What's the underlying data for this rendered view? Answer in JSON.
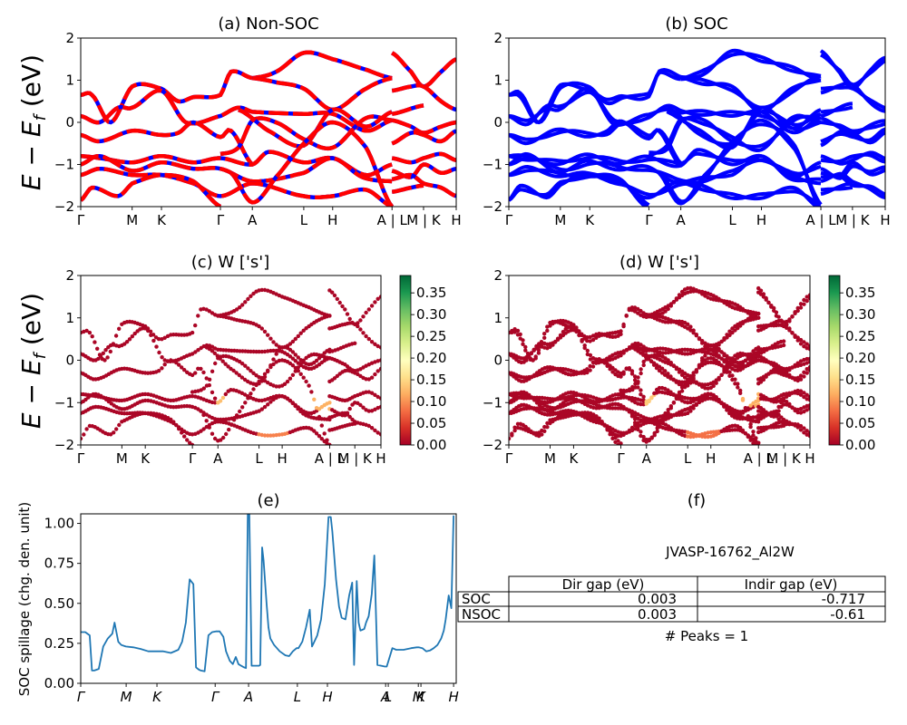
{
  "chart_data": [
    {
      "id": "a",
      "type": "line",
      "title": "(a) Non-SOC",
      "ylabel": "E − E_f (eV)",
      "ylim": [
        -2,
        2
      ],
      "yticks": [
        -2,
        -1,
        0,
        1,
        2
      ],
      "xticks": [
        {
          "label": "Γ",
          "x": 0.0
        },
        {
          "label": "M",
          "x": 0.137
        },
        {
          "label": "K",
          "x": 0.215
        },
        {
          "label": "Γ",
          "x": 0.372
        },
        {
          "label": "A",
          "x": 0.457
        },
        {
          "label": "L",
          "x": 0.594
        },
        {
          "label": "H",
          "x": 0.671
        },
        {
          "label": "A | L",
          "x": 0.829
        },
        {
          "label": "M | K",
          "x": 0.913
        },
        {
          "label": "H",
          "x": 1.0
        }
      ],
      "style": "dashed red-blue",
      "colors": {
        "primary": "#ff0000",
        "secondary": "#0000ff"
      },
      "bands": [
        {
          "x": [
            0,
            0.03,
            0.08,
            0.137,
            0.215,
            0.26,
            0.3,
            0.372,
            0.4,
            0.457
          ],
          "y": [
            0.65,
            0.65,
            0.0,
            0.85,
            0.8,
            0.5,
            0.6,
            0.65,
            1.2,
            1.05
          ]
        },
        {
          "x": [
            0,
            0.05,
            0.1,
            0.137,
            0.215,
            0.28,
            0.372,
            0.42,
            0.457,
            0.594,
            0.671,
            0.76,
            0.829
          ],
          "y": [
            0.15,
            0.0,
            0.35,
            0.35,
            0.75,
            0.0,
            0.15,
            0.35,
            0.25,
            0.2,
            0.2,
            -0.2,
            0.05
          ]
        },
        {
          "x": [
            0,
            0.05,
            0.137,
            0.215,
            0.26,
            0.3,
            0.372,
            0.4,
            0.457
          ],
          "y": [
            -0.3,
            -0.45,
            -0.2,
            -0.3,
            -0.25,
            0.0,
            -0.35,
            -0.2,
            -1.0
          ]
        },
        {
          "x": [
            0,
            0.05,
            0.137,
            0.215,
            0.3,
            0.372,
            0.457,
            0.5,
            0.594,
            0.671,
            0.76,
            0.829
          ],
          "y": [
            -0.8,
            -0.85,
            -0.95,
            -0.8,
            -0.95,
            -0.85,
            -1.0,
            -0.7,
            -0.95,
            -0.85,
            -1.25,
            -1.0
          ]
        },
        {
          "x": [
            0,
            0.05,
            0.137,
            0.215,
            0.3,
            0.372,
            0.457,
            0.594,
            0.671,
            0.75,
            0.829
          ],
          "y": [
            -1.0,
            -0.8,
            -1.15,
            -0.95,
            -1.1,
            -1.1,
            -1.4,
            -1.2,
            -0.85,
            -1.3,
            -1.4
          ]
        },
        {
          "x": [
            0,
            0.05,
            0.137,
            0.215,
            0.3,
            0.372,
            0.457,
            0.594,
            0.671,
            0.76,
            0.829
          ],
          "y": [
            -1.25,
            -1.1,
            -1.25,
            -1.25,
            -1.45,
            -1.75,
            -1.45,
            -1.75,
            -1.75,
            -1.6,
            -2.0
          ]
        },
        {
          "x": [
            0,
            0.03,
            0.1,
            0.137,
            0.215,
            0.3,
            0.372
          ],
          "y": [
            -1.85,
            -1.55,
            -1.75,
            -1.45,
            -1.25,
            -1.4,
            -2.0
          ]
        },
        {
          "x": [
            0.372,
            0.42,
            0.457,
            0.52,
            0.594,
            0.671,
            0.76,
            0.829
          ],
          "y": [
            -0.75,
            -0.6,
            0.05,
            0.0,
            -0.4,
            -0.6,
            0.1,
            0.05
          ]
        },
        {
          "x": [
            0.457,
            0.52,
            0.594,
            0.671,
            0.76,
            0.829
          ],
          "y": [
            1.05,
            1.2,
            1.65,
            1.5,
            1.25,
            1.05
          ]
        },
        {
          "x": [
            0.457,
            0.52,
            0.594,
            0.671,
            0.76,
            0.829
          ],
          "y": [
            1.05,
            0.95,
            0.8,
            0.3,
            0.8,
            1.05
          ]
        },
        {
          "x": [
            0.42,
            0.5,
            0.594,
            0.671,
            0.76,
            0.829
          ],
          "y": [
            0.3,
            -0.2,
            -0.55,
            0.3,
            -0.1,
            0.25
          ]
        },
        {
          "x": [
            0.4,
            0.457,
            0.52,
            0.594,
            0.671,
            0.76,
            0.829
          ],
          "y": [
            -1.2,
            -1.9,
            -1.3,
            -0.5,
            0.0,
            -0.6,
            -2.0
          ]
        },
        {
          "x": [
            0.829,
            0.88,
            0.913,
            0.96,
            1.0
          ],
          "y": [
            1.65,
            1.2,
            0.85,
            1.2,
            1.5
          ]
        },
        {
          "x": [
            0.829,
            0.88,
            0.913,
            0.96,
            1.0
          ],
          "y": [
            0.75,
            0.85,
            0.85,
            0.5,
            0.3
          ]
        },
        {
          "x": [
            0.829,
            0.913
          ],
          "y": [
            0.2,
            0.4
          ]
        },
        {
          "x": [
            0.829,
            0.88,
            0.913,
            0.96,
            1.0
          ],
          "y": [
            0.05,
            -0.1,
            -0.25,
            -0.1,
            0.0
          ]
        },
        {
          "x": [
            0.829,
            0.88,
            0.913,
            0.96,
            1.0
          ],
          "y": [
            -0.5,
            -0.25,
            -0.3,
            -0.45,
            -0.2
          ]
        },
        {
          "x": [
            0.829,
            0.88,
            0.913,
            0.96,
            1.0
          ],
          "y": [
            -0.85,
            -0.95,
            -0.85,
            -0.75,
            -0.9
          ]
        },
        {
          "x": [
            0.829,
            0.88,
            0.913,
            0.96,
            1.0
          ],
          "y": [
            -1.15,
            -1.3,
            -1.0,
            -1.2,
            -1.1
          ]
        },
        {
          "x": [
            0.829,
            0.88,
            0.913,
            0.96,
            1.0
          ],
          "y": [
            -1.35,
            -1.25,
            -1.45,
            -1.55,
            -1.75
          ]
        },
        {
          "x": [
            0.829,
            0.88,
            0.913
          ],
          "y": [
            -1.65,
            -1.55,
            -1.5
          ]
        }
      ]
    },
    {
      "id": "b",
      "type": "line",
      "title": "(b) SOC",
      "ylim": [
        -2,
        2
      ],
      "yticks": [
        -2,
        -1,
        0,
        1,
        2
      ],
      "xticks": [
        {
          "label": "Γ",
          "x": 0.0
        },
        {
          "label": "M",
          "x": 0.137
        },
        {
          "label": "K",
          "x": 0.215
        },
        {
          "label": "Γ",
          "x": 0.372
        },
        {
          "label": "A",
          "x": 0.457
        },
        {
          "label": "L",
          "x": 0.594
        },
        {
          "label": "H",
          "x": 0.671
        },
        {
          "label": "A | L",
          "x": 0.829
        },
        {
          "label": "M | K",
          "x": 0.913
        },
        {
          "label": "H",
          "x": 1.0
        }
      ],
      "colors": {
        "primary": "#0000ff"
      },
      "bands_ref": "a",
      "soc_split_eV": 0.1
    },
    {
      "id": "c",
      "type": "scatter",
      "title": "(c)  W ['s']",
      "ylabel": "E − E_f (eV)",
      "ylim": [
        -2,
        2
      ],
      "yticks": [
        -2,
        -1,
        0,
        1,
        2
      ],
      "xticks": [
        {
          "label": "Γ",
          "x": 0.0
        },
        {
          "label": "M",
          "x": 0.137
        },
        {
          "label": "K",
          "x": 0.215
        },
        {
          "label": "Γ",
          "x": 0.372
        },
        {
          "label": "A",
          "x": 0.457
        },
        {
          "label": "L",
          "x": 0.594
        },
        {
          "label": "H",
          "x": 0.671
        },
        {
          "label": "A | L",
          "x": 0.829
        },
        {
          "label": "M | K",
          "x": 0.913
        },
        {
          "label": "H",
          "x": 1.0
        }
      ],
      "colorbar": {
        "cmap": "RdYlGn",
        "min": 0.0,
        "max": 0.39,
        "ticks": [
          0.0,
          0.05,
          0.1,
          0.15,
          0.2,
          0.25,
          0.3,
          0.35
        ],
        "tick_labels": [
          "0.00",
          "0.05",
          "0.10",
          "0.15",
          "0.20",
          "0.25",
          "0.30",
          "0.35"
        ]
      },
      "bands_ref": "a",
      "highlights": [
        {
          "x": [
            0.457,
            0.52
          ],
          "y": -1.0,
          "weight": 0.13
        },
        {
          "x": [
            0.76,
            0.829
          ],
          "y": -1.0,
          "weight": 0.12
        },
        {
          "x": [
            0.594,
            0.7
          ],
          "y": -1.85,
          "weight": 0.09
        }
      ]
    },
    {
      "id": "d",
      "type": "scatter",
      "title": "(d) W ['s']",
      "ylim": [
        -2,
        2
      ],
      "yticks": [
        -2,
        -1,
        0,
        1,
        2
      ],
      "xticks": [
        {
          "label": "Γ",
          "x": 0.0
        },
        {
          "label": "M",
          "x": 0.137
        },
        {
          "label": "K",
          "x": 0.215
        },
        {
          "label": "Γ",
          "x": 0.372
        },
        {
          "label": "A",
          "x": 0.457
        },
        {
          "label": "L",
          "x": 0.594
        },
        {
          "label": "H",
          "x": 0.671
        },
        {
          "label": "A | L",
          "x": 0.829
        },
        {
          "label": "M | K",
          "x": 0.913
        },
        {
          "label": "H",
          "x": 1.0
        }
      ],
      "colorbar": {
        "cmap": "RdYlGn",
        "min": 0.0,
        "max": 0.39,
        "ticks": [
          0.0,
          0.05,
          0.1,
          0.15,
          0.2,
          0.25,
          0.3,
          0.35
        ],
        "tick_labels": [
          "0.00",
          "0.05",
          "0.10",
          "0.15",
          "0.20",
          "0.25",
          "0.30",
          "0.35"
        ]
      },
      "bands_ref": "a",
      "soc_split_eV": 0.1,
      "highlights": [
        {
          "x": [
            0.457,
            0.52
          ],
          "y": -0.95,
          "weight": 0.14
        },
        {
          "x": [
            0.76,
            0.829
          ],
          "y": -0.95,
          "weight": 0.12
        },
        {
          "x": [
            0.594,
            0.7
          ],
          "y": -1.8,
          "weight": 0.08
        }
      ]
    },
    {
      "id": "e",
      "type": "line",
      "title": "(e)",
      "ylabel": "SOC spillage (chg. den. unit)",
      "ylim": [
        0.0,
        1.06
      ],
      "yticks": [
        0.0,
        0.25,
        0.5,
        0.75,
        1.0
      ],
      "ytick_labels": [
        "0.00",
        "0.25",
        "0.50",
        "0.75",
        "1.00"
      ],
      "xticks": [
        {
          "label": "Γ",
          "x": 0.0
        },
        {
          "label": "M",
          "x": 0.121
        },
        {
          "label": "K",
          "x": 0.203
        },
        {
          "label": "Γ",
          "x": 0.358
        },
        {
          "label": "A",
          "x": 0.447
        },
        {
          "label": "L",
          "x": 0.577
        },
        {
          "label": "H",
          "x": 0.657
        },
        {
          "label": "A",
          "x": 0.812
        },
        {
          "label": "L",
          "x": 0.819
        },
        {
          "label": "M",
          "x": 0.899
        },
        {
          "label": "K",
          "x": 0.906
        },
        {
          "label": "H",
          "x": 0.993
        }
      ],
      "color": "#1f77b4",
      "x": [
        0.0,
        0.012,
        0.024,
        0.03,
        0.036,
        0.048,
        0.06,
        0.072,
        0.084,
        0.09,
        0.1,
        0.108,
        0.12,
        0.14,
        0.16,
        0.18,
        0.2,
        0.22,
        0.24,
        0.26,
        0.27,
        0.28,
        0.29,
        0.3,
        0.307,
        0.315,
        0.32,
        0.33,
        0.34,
        0.35,
        0.36,
        0.37,
        0.38,
        0.387,
        0.397,
        0.405,
        0.413,
        0.42,
        0.427,
        0.435,
        0.44,
        0.445,
        0.449,
        0.455,
        0.465,
        0.475,
        0.478,
        0.483,
        0.487,
        0.495,
        0.5,
        0.505,
        0.515,
        0.53,
        0.545,
        0.555,
        0.565,
        0.575,
        0.58,
        0.59,
        0.6,
        0.61,
        0.616,
        0.62,
        0.63,
        0.64,
        0.65,
        0.66,
        0.666,
        0.67,
        0.68,
        0.688,
        0.695,
        0.705,
        0.715,
        0.723,
        0.728,
        0.735,
        0.74,
        0.745,
        0.755,
        0.76,
        0.767,
        0.775,
        0.782,
        0.79,
        0.8,
        0.81,
        0.815,
        0.83,
        0.84,
        0.86,
        0.88,
        0.895,
        0.9,
        0.91,
        0.92,
        0.93,
        0.94,
        0.95,
        0.96,
        0.967,
        0.972,
        0.98,
        0.987,
        0.993
      ],
      "y": [
        0.32,
        0.32,
        0.3,
        0.08,
        0.08,
        0.09,
        0.23,
        0.28,
        0.31,
        0.38,
        0.26,
        0.24,
        0.23,
        0.225,
        0.215,
        0.2,
        0.2,
        0.2,
        0.19,
        0.21,
        0.26,
        0.38,
        0.65,
        0.62,
        0.1,
        0.085,
        0.08,
        0.075,
        0.3,
        0.32,
        0.325,
        0.325,
        0.29,
        0.2,
        0.14,
        0.12,
        0.165,
        0.12,
        0.11,
        0.1,
        0.095,
        1.06,
        1.06,
        0.11,
        0.11,
        0.11,
        0.115,
        0.85,
        0.77,
        0.5,
        0.35,
        0.28,
        0.24,
        0.2,
        0.175,
        0.17,
        0.2,
        0.22,
        0.22,
        0.26,
        0.35,
        0.46,
        0.23,
        0.25,
        0.3,
        0.4,
        0.62,
        1.04,
        1.04,
        0.95,
        0.65,
        0.48,
        0.41,
        0.4,
        0.55,
        0.63,
        0.115,
        0.64,
        0.38,
        0.33,
        0.34,
        0.38,
        0.42,
        0.56,
        0.8,
        0.115,
        0.11,
        0.105,
        0.105,
        0.22,
        0.21,
        0.21,
        0.22,
        0.225,
        0.225,
        0.22,
        0.2,
        0.205,
        0.22,
        0.24,
        0.28,
        0.33,
        0.4,
        0.55,
        0.47,
        1.05
      ]
    }
  ],
  "panel_f": {
    "title": "(f)",
    "material": "JVASP-16762_Al2W",
    "table": {
      "columns": [
        "",
        "Dir gap (eV)",
        "Indir gap (eV)"
      ],
      "rows": [
        {
          "label": "SOC",
          "dir_gap": "0.003",
          "indir_gap": "-0.717"
        },
        {
          "label": "NSOC",
          "dir_gap": "0.003",
          "indir_gap": "-0.61"
        }
      ]
    },
    "peaks_text": "# Peaks = 1"
  }
}
